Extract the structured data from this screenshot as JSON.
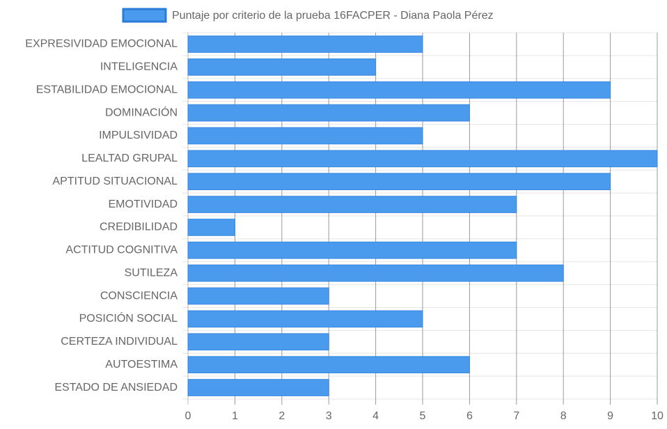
{
  "chart_data": {
    "type": "bar",
    "orientation": "horizontal",
    "categories": [
      "EXPRESIVIDAD EMOCIONAL",
      "INTELIGENCIA",
      "ESTABILIDAD EMOCIONAL",
      "DOMINACIÓN",
      "IMPULSIVIDAD",
      "LEALTAD GRUPAL",
      "APTITUD SITUACIONAL",
      "EMOTIVIDAD",
      "CREDIBILIDAD",
      "ACTITUD COGNITIVA",
      "SUTILEZA",
      "CONSCIENCIA",
      "POSICIÓN SOCIAL",
      "CERTEZA INDIVIDUAL",
      "AUTOESTIMA",
      "ESTADO DE ANSIEDAD"
    ],
    "series": [
      {
        "name": "Puntaje por criterio de la prueba 16FACPER - Diana Paola Pérez",
        "color": "#4a9aed",
        "values": [
          5,
          4,
          9,
          6,
          5,
          10,
          9,
          7,
          1,
          7,
          8,
          3,
          5,
          3,
          6,
          3
        ]
      }
    ],
    "xlim": [
      0,
      10
    ],
    "xticks": [
      0,
      1,
      2,
      3,
      4,
      5,
      6,
      7,
      8,
      9,
      10
    ],
    "grid": true,
    "legend": "top"
  }
}
